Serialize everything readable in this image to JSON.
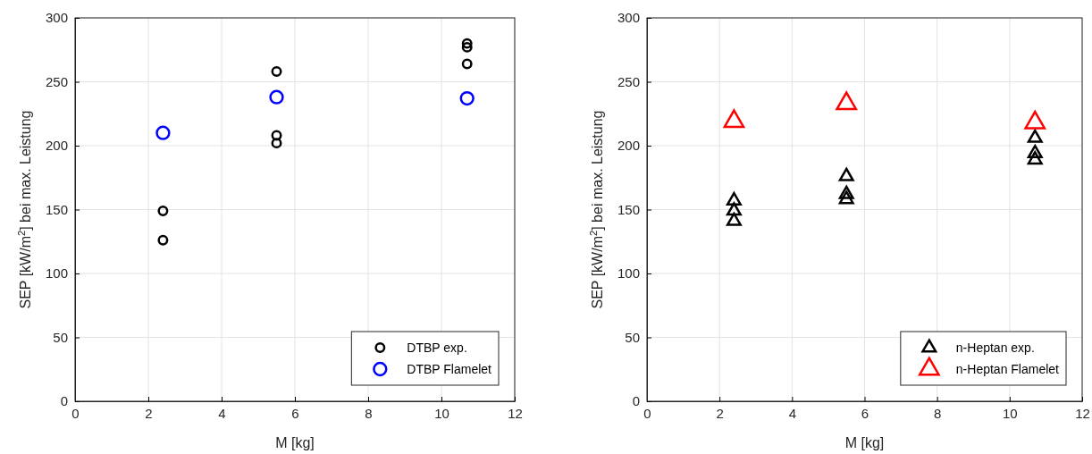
{
  "chart_data": [
    {
      "type": "scatter",
      "xlabel": "M [kg]",
      "ylabel": "SEP [kW/m$^{2}$] bei max. Leistung",
      "xlim": [
        0,
        12
      ],
      "xticks": [
        0,
        2,
        4,
        6,
        8,
        10,
        12
      ],
      "ylim": [
        0,
        300
      ],
      "yticks": [
        0,
        50,
        100,
        150,
        200,
        250,
        300
      ],
      "grid": true,
      "legend": "bottom right",
      "marker": "circle",
      "series": [
        {
          "name": "DTBP exp.",
          "color": "#000000",
          "x": [
            2.4,
            2.4,
            5.5,
            5.5,
            5.5,
            10.7,
            10.7,
            10.7
          ],
          "values": [
            149,
            126,
            258,
            208,
            202,
            280,
            277,
            264
          ]
        },
        {
          "name": "DTBP Flamelet",
          "color": "#0000ff",
          "x": [
            2.4,
            5.5,
            10.7
          ],
          "values": [
            210,
            238,
            237
          ]
        }
      ]
    },
    {
      "type": "scatter",
      "xlabel": "M [kg]",
      "ylabel": "SEP [kW/m$^{2}$] bei max. Leistung",
      "xlim": [
        0,
        12
      ],
      "xticks": [
        0,
        2,
        4,
        6,
        8,
        10,
        12
      ],
      "ylim": [
        0,
        300
      ],
      "yticks": [
        0,
        50,
        100,
        150,
        200,
        250,
        300
      ],
      "grid": true,
      "legend": "bottom right",
      "marker": "triangle",
      "series": [
        {
          "name": "n-Heptan exp.",
          "color": "#000000",
          "x": [
            2.4,
            2.4,
            2.4,
            5.5,
            5.5,
            5.5,
            10.7,
            10.7,
            10.7
          ],
          "values": [
            157,
            149,
            141,
            176,
            162,
            158,
            206,
            194,
            189
          ]
        },
        {
          "name": "n-Heptan Flamelet",
          "color": "#ff0000",
          "x": [
            2.4,
            5.5,
            10.7
          ],
          "values": [
            219,
            233,
            218
          ]
        }
      ]
    }
  ]
}
